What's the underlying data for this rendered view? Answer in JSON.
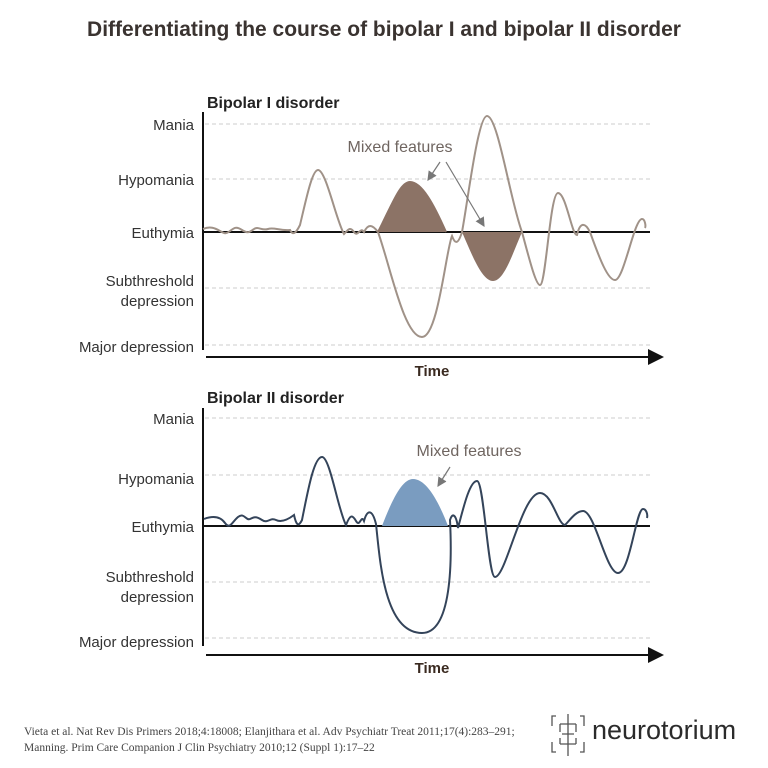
{
  "title": "Differentiating the course of bipolar I and bipolar II disorder",
  "levels": [
    "Mania",
    "Hypomania",
    "Euthymia",
    "Subthreshold",
    "depression",
    "Major depression"
  ],
  "panels": [
    {
      "heading": "Bipolar I disorder",
      "annotation": "Mixed features",
      "xlabel": "Time",
      "line_color": "#a09288",
      "fill_color": "#8c7366"
    },
    {
      "heading": "Bipolar II disorder",
      "annotation": "Mixed features",
      "xlabel": "Time",
      "line_color": "#34445a",
      "fill_color": "#7a9cc0"
    }
  ],
  "references": [
    "Vieta et al. Nat Rev Dis Primers 2018;4:18008; Elanjithara et al. Adv Psychiatr Treat 2011;17(4):283–291;",
    "Manning. Prim Care Companion J Clin Psychiatry 2010;12 (Suppl 1):17–22"
  ],
  "brand": "neurotorium"
}
